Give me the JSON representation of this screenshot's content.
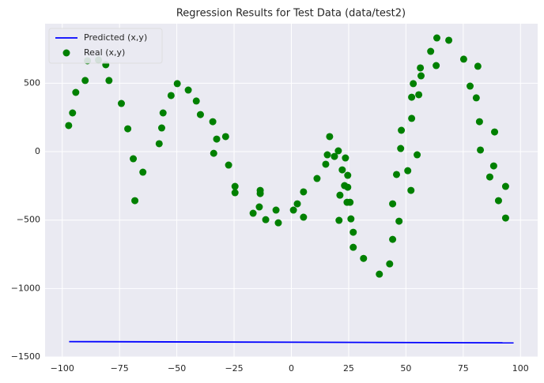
{
  "chart_data": {
    "type": "scatter",
    "title": "Regression Results for Test Data (data/test2)",
    "xlim": [
      -107.5,
      107.5
    ],
    "ylim": [
      -1500,
      935
    ],
    "xticks": [
      {
        "value": -100,
        "label": "−100"
      },
      {
        "value": -75,
        "label": "−75"
      },
      {
        "value": -50,
        "label": "−50"
      },
      {
        "value": -25,
        "label": "−25"
      },
      0,
      25,
      50,
      75,
      100
    ],
    "yticks": [
      {
        "value": -1500,
        "label": "−1500"
      },
      {
        "value": -1000,
        "label": "−1000"
      },
      {
        "value": -500,
        "label": "−500"
      },
      0,
      500
    ],
    "grid": true,
    "legend": "upper left",
    "series": [
      {
        "name": "Predicted (x,y)",
        "type": "line",
        "color": "#0000ff",
        "x": [
          -97,
          97
        ],
        "values": [
          -1388,
          -1397
        ]
      },
      {
        "name": "Real (x,y)",
        "type": "scatter",
        "color": "#008000",
        "x": [
          -97.2,
          -95.5,
          -94.1,
          -90,
          -89,
          -84.2,
          -81,
          -79.6,
          -74.2,
          -71.4,
          -69,
          -68.3,
          -64.8,
          -57.7,
          -56.6,
          -56,
          -52.5,
          -49.8,
          -45,
          -41.5,
          -39.7,
          -34.3,
          -33.9,
          -32.6,
          -28.7,
          -27.4,
          -24.6,
          -24.6,
          -16.7,
          -13.6,
          -13.6,
          -14,
          -11.2,
          -6.7,
          -5.7,
          0.9,
          2.6,
          5.3,
          5.3,
          11.2,
          15,
          15.7,
          16.7,
          18.8,
          20.5,
          21.2,
          20.8,
          22.2,
          23.2,
          23.6,
          24.6,
          24.3,
          24.6,
          25.6,
          26,
          27,
          27,
          31.5,
          38.4,
          42.9,
          44.2,
          44.2,
          45.9,
          47,
          47.7,
          48,
          50.8,
          52.2,
          52.5,
          52.5,
          53.2,
          54.9,
          55.6,
          56.6,
          56.3,
          60.8,
          63.2,
          63.5,
          68.7,
          75.2,
          78,
          80.7,
          81.4,
          82.1,
          82.5,
          86.6,
          88.3,
          88.7,
          90.4,
          93.5,
          93.5
        ],
        "values": [
          191,
          283,
          433,
          520,
          664,
          670,
          635,
          520,
          352,
          167,
          -52,
          -358,
          -150,
          58,
          173,
          283,
          410,
          497,
          450,
          370,
          271,
          219,
          -12,
          92,
          110,
          -98,
          -254,
          -300,
          -450,
          -283,
          -306,
          -404,
          -497,
          -427,
          -520,
          -427,
          -381,
          -294,
          -479,
          -196,
          -92,
          -23,
          110,
          -35,
          6,
          -318,
          -502,
          -133,
          -248,
          -46,
          -173,
          -370,
          -260,
          -370,
          -491,
          -589,
          -699,
          -780,
          -895,
          -820,
          -641,
          -381,
          -167,
          -508,
          23,
          156,
          -139,
          -283,
          243,
          398,
          497,
          -23,
          416,
          554,
          612,
          733,
          629,
          831,
          814,
          676,
          479,
          393,
          624,
          219,
          12,
          -185,
          -104,
          144,
          -358,
          -254,
          -485
        ]
      }
    ]
  }
}
